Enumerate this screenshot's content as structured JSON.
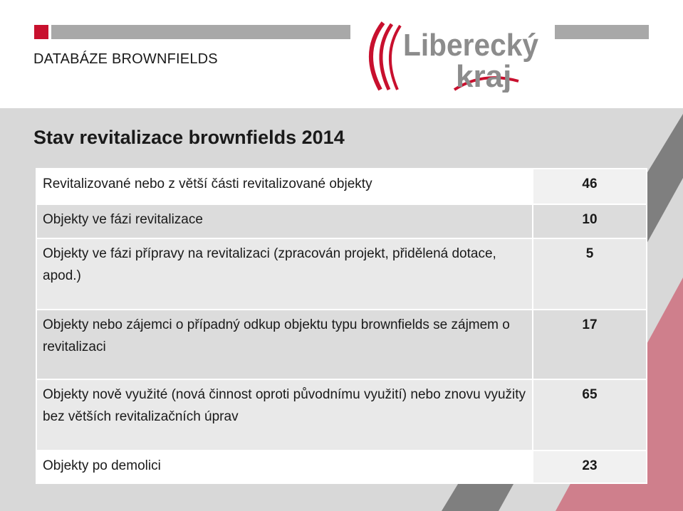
{
  "header": {
    "section_label": "DATABÁZE BROWNFIELDS",
    "logo": {
      "line1": "Liberecký",
      "line2": "kraj",
      "colors": {
        "text": "#8c8c8c",
        "accent": "#c8102e"
      }
    }
  },
  "slide": {
    "title": "Stav revitalizace brownfields 2014"
  },
  "table": {
    "rows": [
      {
        "label": "Revitalizované nebo z větší části revitalizované objekty",
        "value": "46"
      },
      {
        "label": "Objekty ve fázi revitalizace",
        "value": "10"
      },
      {
        "label": "Objekty ve fázi přípravy na revitalizaci (zpracován projekt, přidělená dotace, apod.)",
        "value": "5"
      },
      {
        "label": "Objekty nebo zájemci o případný odkup objektu typu brownfields se zájmem o revitalizaci",
        "value": "17"
      },
      {
        "label": "Objekty nově využité (nová činnost oproti původnímu využití) nebo znovu využity bez větších revitalizačních úprav",
        "value": "65"
      },
      {
        "label": "Objekty po demolici",
        "value": "23"
      }
    ]
  },
  "colors": {
    "accent": "#c8102e",
    "pink": "#cf7f8c",
    "gray_band": "#7f7f7f",
    "background": "#d8d8d8"
  }
}
